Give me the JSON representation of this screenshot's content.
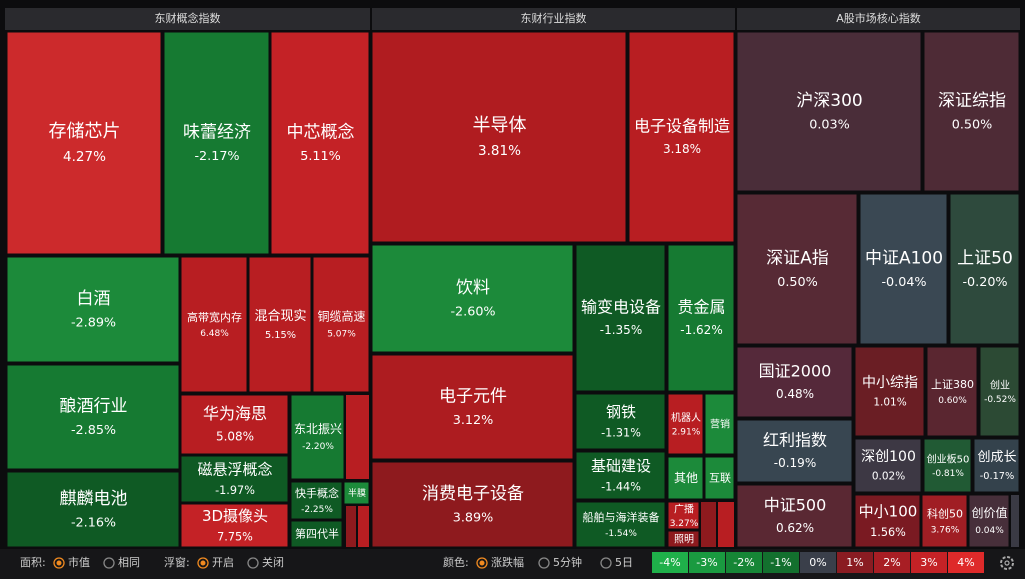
{
  "panels": [
    {
      "title": "东财概念指数",
      "tiles": [
        {
          "name": "存储芯片",
          "change": "4.27%"
        },
        {
          "name": "味蕾经济",
          "change": "-2.17%"
        },
        {
          "name": "中芯概念",
          "change": "5.11%"
        },
        {
          "name": "白酒",
          "change": "-2.89%"
        },
        {
          "name": "酿酒行业",
          "change": "-2.85%"
        },
        {
          "name": "麒麟电池",
          "change": "-2.16%"
        },
        {
          "name": "高带宽内存",
          "change": "6.48%"
        },
        {
          "name": "混合现实",
          "change": "5.15%"
        },
        {
          "name": "铜缆高速",
          "change": "5.07%"
        },
        {
          "name": "华为海思",
          "change": "5.08%"
        },
        {
          "name": "磁悬浮概念",
          "change": "-1.97%"
        },
        {
          "name": "3D摄像头",
          "change": "7.75%"
        },
        {
          "name": "东北振兴",
          "change": "-2.20%"
        },
        {
          "name": "快手概念",
          "change": "-2.25%"
        },
        {
          "name": "半膜"
        },
        {
          "name": "第四代半"
        }
      ]
    },
    {
      "title": "东财行业指数",
      "tiles": [
        {
          "name": "半导体",
          "change": "3.81%"
        },
        {
          "name": "电子设备制造",
          "change": "3.18%"
        },
        {
          "name": "饮料",
          "change": "-2.60%"
        },
        {
          "name": "电子元件",
          "change": "3.12%"
        },
        {
          "name": "消费电子设备",
          "change": "3.89%"
        },
        {
          "name": "输变电设备",
          "change": "-1.35%"
        },
        {
          "name": "贵金属",
          "change": "-1.62%"
        },
        {
          "name": "钢铁",
          "change": "-1.31%"
        },
        {
          "name": "基础建设",
          "change": "-1.44%"
        },
        {
          "name": "船舶与海洋装备",
          "change": "-1.54%"
        },
        {
          "name": "机器人",
          "change": "2.91%"
        },
        {
          "name": "营销"
        },
        {
          "name": "其他"
        },
        {
          "name": "互联"
        },
        {
          "name": "广播",
          "change": "3.27%"
        },
        {
          "name": "照明"
        }
      ]
    },
    {
      "title": "A股市场核心指数",
      "tiles": [
        {
          "name": "沪深300",
          "change": "0.03%"
        },
        {
          "name": "深证综指",
          "change": "0.50%"
        },
        {
          "name": "深证A指",
          "change": "0.50%"
        },
        {
          "name": "中证A100",
          "change": "-0.04%"
        },
        {
          "name": "上证50",
          "change": "-0.20%"
        },
        {
          "name": "国证2000",
          "change": "0.48%"
        },
        {
          "name": "红利指数",
          "change": "-0.19%"
        },
        {
          "name": "中证500",
          "change": "0.62%"
        },
        {
          "name": "中小综指",
          "change": "1.01%"
        },
        {
          "name": "上证380",
          "change": "0.60%"
        },
        {
          "name": "创业",
          "change": "-0.52%"
        },
        {
          "name": "深创100",
          "change": "0.02%"
        },
        {
          "name": "创业板50",
          "change": "-0.81%"
        },
        {
          "name": "创成长",
          "change": "-0.17%"
        },
        {
          "name": "中小100",
          "change": "1.56%"
        },
        {
          "name": "科创50",
          "change": "3.76%"
        },
        {
          "name": "创价值",
          "change": "0.04%"
        }
      ]
    }
  ],
  "controls": {
    "area": {
      "label": "面积:",
      "options": [
        "市值",
        "相同"
      ]
    },
    "popup": {
      "label": "浮窗:",
      "options": [
        "开启",
        "关闭"
      ]
    },
    "color": {
      "label": "颜色:",
      "options": [
        "涨跌幅",
        "5分钟",
        "5日"
      ]
    }
  },
  "legend": [
    "-4%",
    "-3%",
    "-2%",
    "-1%",
    "0%",
    "1%",
    "2%",
    "3%",
    "4%"
  ]
}
